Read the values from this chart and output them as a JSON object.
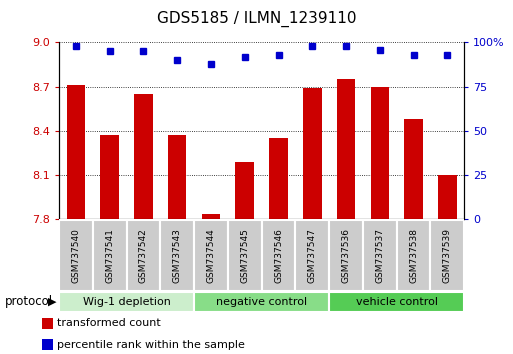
{
  "title": "GDS5185 / ILMN_1239110",
  "samples": [
    "GSM737540",
    "GSM737541",
    "GSM737542",
    "GSM737543",
    "GSM737544",
    "GSM737545",
    "GSM737546",
    "GSM737547",
    "GSM737536",
    "GSM737537",
    "GSM737538",
    "GSM737539"
  ],
  "bar_values": [
    8.71,
    8.37,
    8.65,
    8.37,
    7.84,
    8.19,
    8.35,
    8.69,
    8.75,
    8.7,
    8.48,
    8.1
  ],
  "percentile_values": [
    98,
    95,
    95,
    90,
    88,
    92,
    93,
    98,
    98,
    96,
    93,
    93
  ],
  "ylim_left": [
    7.8,
    9.0
  ],
  "ylim_right": [
    0,
    100
  ],
  "yticks_left": [
    7.8,
    8.1,
    8.4,
    8.7,
    9.0
  ],
  "yticks_right": [
    0,
    25,
    50,
    75,
    100
  ],
  "bar_color": "#cc0000",
  "dot_color": "#0000cc",
  "grid_color": "#000000",
  "protocol_groups": [
    {
      "label": "Wig-1 depletion",
      "start": 0,
      "end": 3,
      "color": "#cceecc"
    },
    {
      "label": "negative control",
      "start": 4,
      "end": 7,
      "color": "#88dd88"
    },
    {
      "label": "vehicle control",
      "start": 8,
      "end": 11,
      "color": "#55cc55"
    }
  ],
  "right_axis_color": "#0000cc",
  "tick_label_color_left": "#cc0000",
  "tick_label_color_right": "#0000cc",
  "legend_bar_label": "transformed count",
  "legend_dot_label": "percentile rank within the sample",
  "protocol_label": "protocol",
  "bar_width": 0.55,
  "xtick_box_color": "#cccccc",
  "fig_width": 5.13,
  "fig_height": 3.54,
  "dpi": 100
}
